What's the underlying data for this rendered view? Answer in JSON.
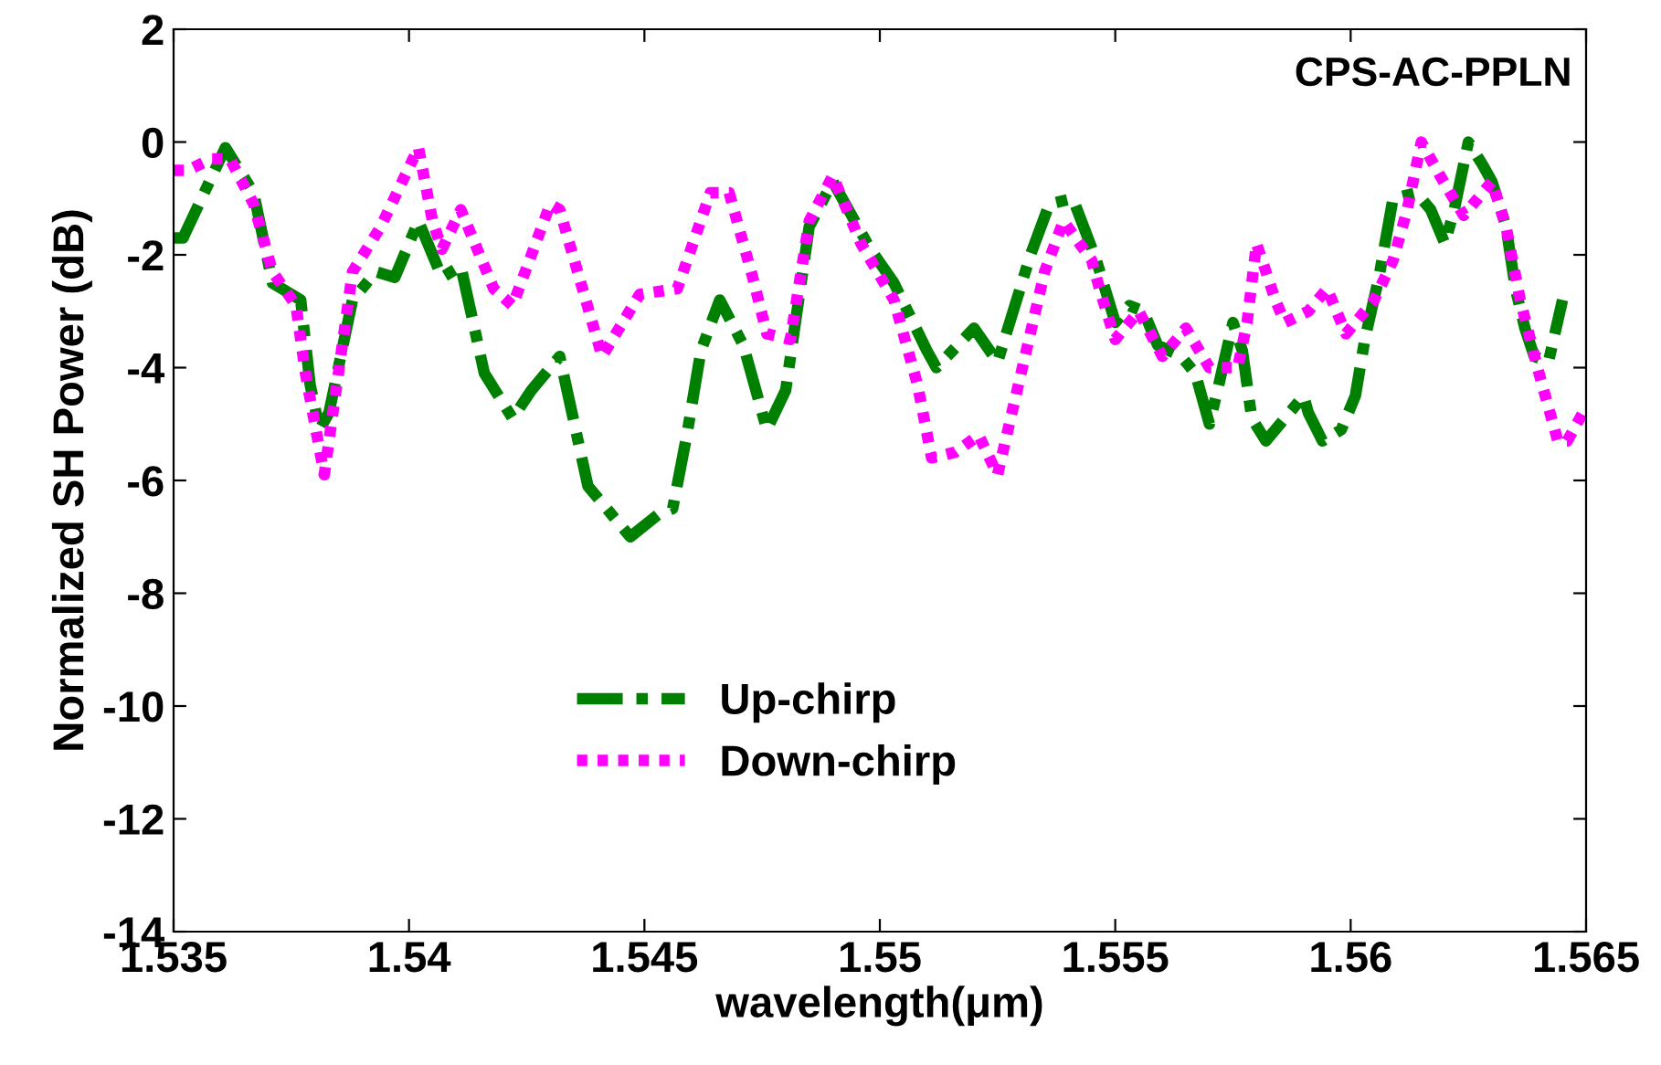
{
  "chart_data": {
    "type": "line",
    "xlabel": "wavelength(μm)",
    "ylabel": "Normalized SH Power (dB)",
    "annotations": [
      "CPS-AC-PPLN"
    ],
    "xlim": [
      1.535,
      1.565
    ],
    "xticks": [
      1.535,
      1.54,
      1.545,
      1.55,
      1.555,
      1.56,
      1.565
    ],
    "ylim": [
      -14,
      2
    ],
    "yticks": [
      -14,
      -12,
      -10,
      -8,
      -6,
      -4,
      -2,
      0,
      2
    ],
    "grid": false,
    "legend": "bottom",
    "marker": "none",
    "series": [
      {
        "name": "Up-chirp",
        "color": "#008000",
        "line_style": "dashdot",
        "x": [
          1.535,
          1.5352,
          1.5361,
          1.5367,
          1.5371,
          1.5377,
          1.5379,
          1.5381,
          1.5383,
          1.5388,
          1.5393,
          1.5397,
          1.5402,
          1.5405,
          1.5407,
          1.5411,
          1.5416,
          1.5422,
          1.5426,
          1.5432,
          1.5438,
          1.5447,
          1.5453,
          1.5456,
          1.5459,
          1.5462,
          1.5466,
          1.5471,
          1.5476,
          1.548,
          1.5485,
          1.549,
          1.5498,
          1.5503,
          1.551,
          1.5512,
          1.552,
          1.5525,
          1.5532,
          1.5536,
          1.5541,
          1.5546,
          1.555,
          1.5553,
          1.5556,
          1.5559,
          1.5564,
          1.5567,
          1.557,
          1.5572,
          1.5575,
          1.5577,
          1.5579,
          1.5582,
          1.5585,
          1.559,
          1.5591,
          1.5594,
          1.5598,
          1.5601,
          1.5603,
          1.5606,
          1.5609,
          1.5614,
          1.5617,
          1.562,
          1.5622,
          1.5625,
          1.5628,
          1.563,
          1.5633,
          1.5635,
          1.5637,
          1.5639,
          1.5642,
          1.5645
        ],
        "values": [
          -1.7,
          -1.7,
          -0.1,
          -0.9,
          -2.5,
          -2.8,
          -4.3,
          -5.1,
          -4.8,
          -2.8,
          -2.3,
          -2.4,
          -1.4,
          -2.0,
          -2.4,
          -2.2,
          -4.1,
          -4.9,
          -4.4,
          -3.8,
          -6.1,
          -7.0,
          -6.6,
          -6.5,
          -5.2,
          -3.7,
          -2.8,
          -3.6,
          -5.1,
          -4.4,
          -1.5,
          -0.7,
          -1.9,
          -2.5,
          -3.7,
          -4.0,
          -3.3,
          -3.9,
          -2.0,
          -1.1,
          -1.0,
          -2.1,
          -3.2,
          -2.9,
          -3.0,
          -3.6,
          -3.8,
          -4.1,
          -5.0,
          -4.3,
          -3.2,
          -3.7,
          -4.9,
          -5.3,
          -5.0,
          -4.5,
          -4.8,
          -5.3,
          -5.1,
          -4.5,
          -3.5,
          -2.4,
          -1.0,
          -0.9,
          -1.2,
          -1.8,
          -1.2,
          0.0,
          -0.4,
          -0.7,
          -1.5,
          -2.6,
          -3.3,
          -3.8,
          -3.9,
          -2.8
        ]
      },
      {
        "name": "Down-chirp",
        "color": "#ff00ff",
        "line_style": "dotted",
        "x": [
          1.535,
          1.5353,
          1.5358,
          1.5362,
          1.5367,
          1.5371,
          1.5376,
          1.5378,
          1.5382,
          1.5386,
          1.5388,
          1.5394,
          1.5402,
          1.5405,
          1.5407,
          1.5411,
          1.5418,
          1.5422,
          1.543,
          1.5432,
          1.5441,
          1.5449,
          1.5457,
          1.5464,
          1.5468,
          1.5473,
          1.5476,
          1.5481,
          1.5485,
          1.549,
          1.5496,
          1.5503,
          1.5508,
          1.5511,
          1.5516,
          1.5521,
          1.5525,
          1.553,
          1.5535,
          1.5539,
          1.5545,
          1.5547,
          1.555,
          1.5555,
          1.556,
          1.5565,
          1.557,
          1.5576,
          1.5578,
          1.558,
          1.5584,
          1.5586,
          1.5591,
          1.5595,
          1.5599,
          1.5605,
          1.5609,
          1.5612,
          1.5615,
          1.5619,
          1.5624,
          1.563,
          1.5633,
          1.5636,
          1.564,
          1.5644,
          1.5646,
          1.565
        ],
        "values": [
          -0.5,
          -0.5,
          -0.3,
          -0.3,
          -1.1,
          -2.3,
          -2.9,
          -4.1,
          -5.9,
          -3.5,
          -2.3,
          -1.5,
          -0.1,
          -1.4,
          -1.9,
          -1.2,
          -2.6,
          -2.9,
          -1.1,
          -1.2,
          -3.8,
          -2.7,
          -2.6,
          -0.9,
          -0.9,
          -2.4,
          -3.4,
          -3.5,
          -1.4,
          -0.6,
          -1.8,
          -2.8,
          -4.3,
          -5.6,
          -5.5,
          -5.2,
          -5.9,
          -4.1,
          -2.3,
          -1.4,
          -2.1,
          -2.7,
          -3.5,
          -3.0,
          -3.8,
          -3.3,
          -4.0,
          -4.0,
          -3.2,
          -1.8,
          -2.8,
          -3.2,
          -3.0,
          -2.6,
          -3.4,
          -2.8,
          -2.1,
          -1.2,
          0.0,
          -0.6,
          -1.3,
          -0.7,
          -1.5,
          -2.8,
          -4.1,
          -5.3,
          -5.3,
          -4.7
        ]
      }
    ]
  }
}
